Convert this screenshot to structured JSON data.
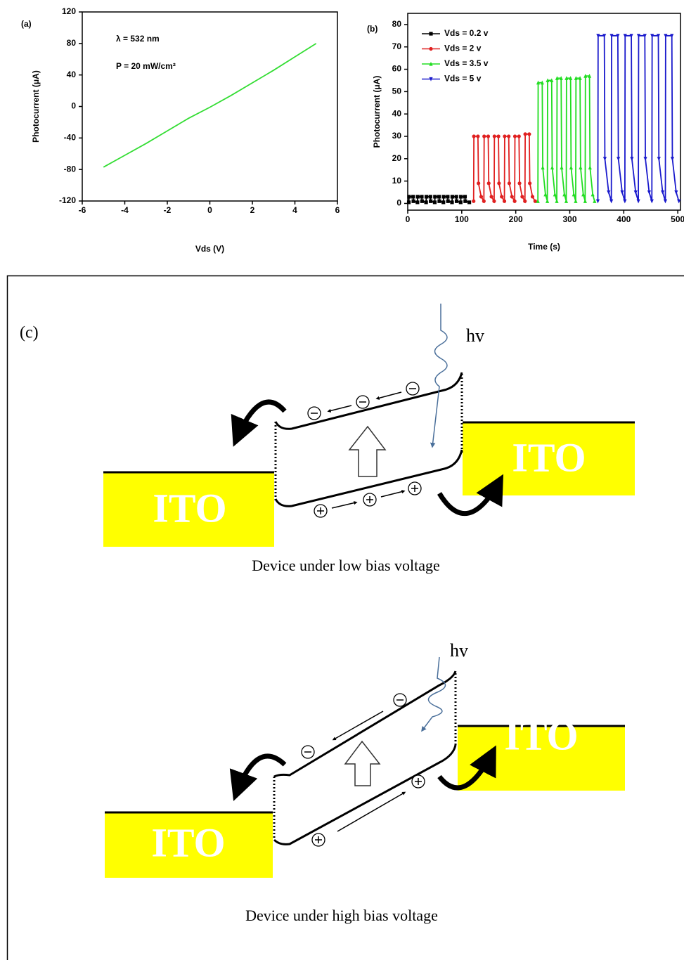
{
  "chart_data": [
    {
      "type": "line",
      "panel_label": "(a)",
      "xlabel": "Vds (V)",
      "ylabel": "Photocurrent (μA)",
      "annotations": [
        "λ = 532 nm",
        "P = 20 mW/cm²"
      ],
      "x": [
        -5,
        -4,
        -3,
        -2,
        -1,
        0,
        1,
        2,
        3,
        4,
        5
      ],
      "values": [
        -77,
        -62,
        -47,
        -31,
        -15,
        -1,
        14,
        30,
        46,
        63,
        80
      ],
      "color": "#33dd33",
      "xlim": [
        -6,
        6
      ],
      "xticks": [
        -6,
        -4,
        -2,
        0,
        2,
        4,
        6
      ],
      "ylim": [
        -120,
        120
      ],
      "yticks": [
        -120,
        -80,
        -40,
        0,
        40,
        80,
        120
      ]
    },
    {
      "type": "line",
      "panel_label": "(b)",
      "xlabel": "Time (s)",
      "ylabel": "Photocurrent (μA)",
      "legend": "upper left",
      "series": [
        {
          "name": "Vds = 0.2 v",
          "color": "#000000",
          "marker": "square",
          "x": [
            2,
            2.5,
            10,
            10.5,
            18,
            18.5,
            26,
            26.5,
            34,
            34.5,
            42,
            42.5,
            50,
            50.5,
            58,
            58.5,
            66,
            66.5,
            74,
            74.5,
            82,
            82.5,
            90,
            90.5,
            98,
            98.5,
            106,
            106.5,
            114
          ],
          "values": [
            0.5,
            3,
            3,
            1,
            0.5,
            3,
            3,
            1,
            0.5,
            3,
            3,
            1,
            0.5,
            3,
            3,
            1,
            0.5,
            3,
            3,
            1,
            0.5,
            3,
            3,
            1,
            0.5,
            3,
            3,
            1,
            0.5
          ]
        },
        {
          "name": "Vds = 2 v",
          "color": "#e02020",
          "marker": "circle",
          "x": [
            122,
            122.5,
            130,
            131,
            136,
            141,
            141.5,
            149,
            150,
            155,
            160,
            160.5,
            168,
            169,
            174,
            179,
            179.5,
            187,
            188,
            193,
            198,
            198.5,
            206,
            207,
            212,
            217,
            217.5,
            225,
            226,
            231,
            236
          ],
          "values": [
            1,
            30,
            30,
            9,
            3,
            1,
            30,
            30,
            9,
            3,
            1,
            30,
            30,
            9,
            3,
            1,
            30,
            30,
            9,
            3,
            1,
            30,
            30,
            9,
            3,
            1,
            31,
            31,
            9,
            3,
            1
          ]
        },
        {
          "name": "Vds = 3.5 v",
          "color": "#22dd22",
          "marker": "triangle-up",
          "x": [
            241,
            241.5,
            249,
            250,
            255,
            258.5,
            259,
            266.5,
            267.5,
            272.5,
            276,
            276.5,
            284,
            285,
            290,
            293.5,
            294,
            301.5,
            302.5,
            307.5,
            311,
            311.5,
            319,
            320,
            325,
            328.5,
            329,
            336.5,
            337.5,
            342.5,
            346
          ],
          "values": [
            1,
            54,
            54,
            16,
            4,
            1,
            55,
            55,
            16,
            4,
            1,
            56,
            56,
            16,
            4,
            1,
            56,
            56,
            16,
            4,
            1,
            56,
            56,
            16,
            4,
            1,
            57,
            57,
            16,
            4,
            1
          ]
        },
        {
          "name": "Vds = 5 v",
          "color": "#1a1acc",
          "marker": "triangle-down",
          "x": [
            352,
            352.5,
            364,
            365,
            372,
            377,
            377.5,
            389,
            390,
            397,
            402,
            402.5,
            414,
            415,
            422,
            427,
            427.5,
            439,
            440,
            447,
            452,
            452.5,
            464,
            465,
            472,
            477,
            477.5,
            489,
            490,
            497,
            502
          ],
          "values": [
            1,
            75,
            75,
            20,
            5,
            1,
            75,
            75,
            20,
            5,
            1,
            75,
            75,
            20,
            5,
            1,
            75,
            75,
            20,
            5,
            1,
            75,
            75,
            20,
            5,
            1,
            75,
            75,
            20,
            5,
            1
          ]
        }
      ],
      "xlim": [
        0,
        505
      ],
      "xticks": [
        0,
        100,
        200,
        300,
        400,
        500
      ],
      "ylim": [
        -3,
        85
      ],
      "yticks": [
        0,
        10,
        20,
        30,
        40,
        50,
        60,
        70,
        80
      ]
    }
  ],
  "diagram": {
    "label": "(c)",
    "panels": [
      {
        "photon": "hv",
        "left_electrode": "ITO",
        "right_electrode": "ITO",
        "caption": "Device under low bias voltage"
      },
      {
        "photon": "hv",
        "left_electrode": "ITO",
        "right_electrode": "ITO",
        "caption": "Device under high bias voltage"
      }
    ]
  }
}
